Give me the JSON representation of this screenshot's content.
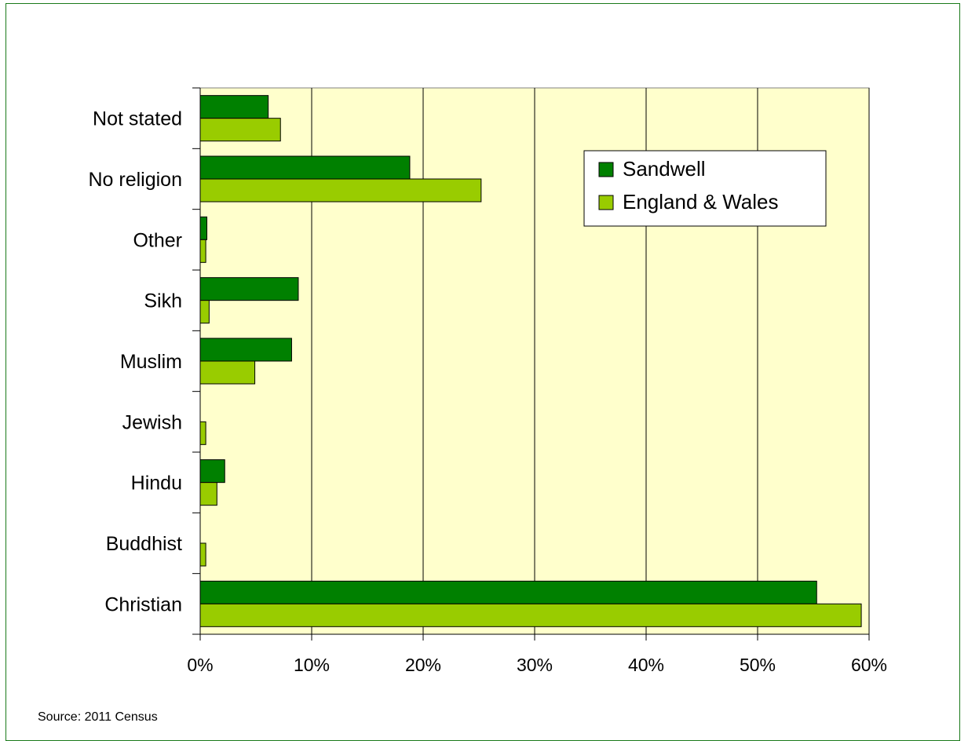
{
  "chart_data": {
    "type": "bar",
    "orientation": "horizontal",
    "categories": [
      "Christian",
      "Buddhist",
      "Hindu",
      "Jewish",
      "Muslim",
      "Sikh",
      "Other",
      "No religion",
      "Not stated"
    ],
    "series": [
      {
        "name": "Sandwell",
        "color": "#008000",
        "values": [
          55.3,
          0,
          2.2,
          0,
          8.2,
          8.8,
          0.6,
          18.8,
          6.1
        ]
      },
      {
        "name": "England & Wales",
        "color": "#99cc00",
        "values": [
          59.3,
          0.5,
          1.5,
          0.5,
          4.9,
          0.8,
          0.5,
          25.2,
          7.2
        ]
      }
    ],
    "xlim": [
      0,
      60
    ],
    "xticks": [
      "0%",
      "10%",
      "20%",
      "30%",
      "40%",
      "50%",
      "60%"
    ],
    "xtick_values": [
      0,
      10,
      20,
      30,
      40,
      50,
      60
    ],
    "grid": "vertical",
    "legend_position": "top-right",
    "plot_background": "#ffffcc"
  },
  "source": "Source: 2011 Census"
}
